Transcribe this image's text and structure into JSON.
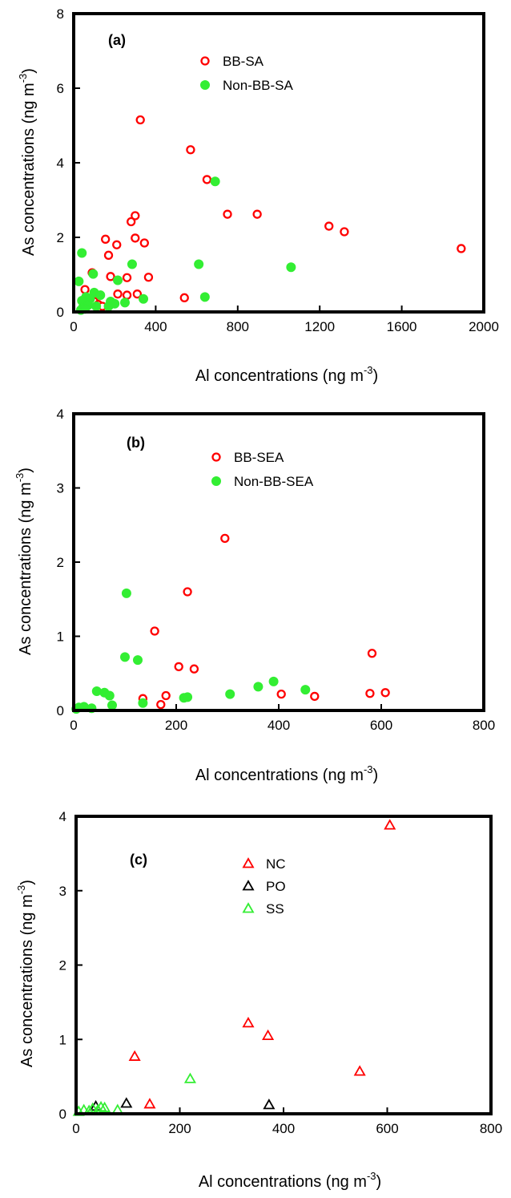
{
  "figure": {
    "panels": [
      {
        "label": "(a)",
        "xlabel": "Al concentrations (ng m",
        "xlabel_sup": "-3",
        "xlabel_end": ")",
        "ylabel": "As concentrations (ng m",
        "ylabel_sup": "-3",
        "ylabel_end": ")"
      },
      {
        "label": "(b)",
        "xlabel": "Al concentrations (ng m",
        "xlabel_sup": "-3",
        "xlabel_end": ")",
        "ylabel": "As concentrations (ng m",
        "ylabel_sup": "-3",
        "ylabel_end": ")"
      },
      {
        "label": "(c)",
        "xlabel": "Al concentrations (ng m",
        "xlabel_sup": "-3",
        "xlabel_end": ")",
        "ylabel": "As concentrations (ng m",
        "ylabel_sup": "-3",
        "ylabel_end": ")"
      }
    ]
  },
  "chart_data": [
    {
      "type": "scatter",
      "panel_label": "(a)",
      "xlabel": "Al concentrations (ng m-3)",
      "ylabel": "As concentrations (ng m-3)",
      "xlim": [
        0,
        2000
      ],
      "ylim": [
        0,
        8
      ],
      "xticks": [
        "0",
        "400",
        "800",
        "1200",
        "1600",
        "2000"
      ],
      "xtick_values": [
        0,
        400,
        800,
        1200,
        1600,
        2000
      ],
      "yticks": [
        "0",
        "2",
        "4",
        "6",
        "8"
      ],
      "ytick_values": [
        0,
        2,
        4,
        6,
        8
      ],
      "grid": false,
      "legend_position": "top-center",
      "series": [
        {
          "name": "BB-SA",
          "marker": "open-circle",
          "color": "#ff0000",
          "points": [
            [
              325,
              5.15
            ],
            [
              570,
              4.35
            ],
            [
              650,
              3.55
            ],
            [
              750,
              2.62
            ],
            [
              895,
              2.62
            ],
            [
              1245,
              2.3
            ],
            [
              1320,
              2.15
            ],
            [
              1890,
              1.7
            ],
            [
              300,
              2.58
            ],
            [
              280,
              2.42
            ],
            [
              300,
              1.98
            ],
            [
              345,
              1.85
            ],
            [
              155,
              1.95
            ],
            [
              210,
              1.8
            ],
            [
              170,
              1.52
            ],
            [
              180,
              0.95
            ],
            [
              260,
              0.92
            ],
            [
              365,
              0.93
            ],
            [
              90,
              1.05
            ],
            [
              130,
              0.45
            ],
            [
              215,
              0.48
            ],
            [
              260,
              0.45
            ],
            [
              310,
              0.48
            ],
            [
              540,
              0.38
            ],
            [
              55,
              0.6
            ],
            [
              75,
              0.35
            ],
            [
              100,
              0.28
            ],
            [
              120,
              0.2
            ],
            [
              140,
              0.15
            ],
            [
              60,
              0.25
            ]
          ]
        },
        {
          "name": "Non-BB-SA",
          "marker": "filled-circle",
          "color": "#33ee33",
          "points": [
            [
              690,
              3.5
            ],
            [
              40,
              1.58
            ],
            [
              610,
              1.28
            ],
            [
              1060,
              1.2
            ],
            [
              285,
              1.28
            ],
            [
              95,
              1.02
            ],
            [
              215,
              0.85
            ],
            [
              25,
              0.82
            ],
            [
              640,
              0.4
            ],
            [
              340,
              0.35
            ],
            [
              100,
              0.52
            ],
            [
              130,
              0.45
            ],
            [
              80,
              0.35
            ],
            [
              60,
              0.4
            ],
            [
              40,
              0.3
            ],
            [
              45,
              0.12
            ],
            [
              70,
              0.18
            ],
            [
              180,
              0.28
            ],
            [
              200,
              0.22
            ],
            [
              250,
              0.25
            ],
            [
              170,
              0.15
            ],
            [
              35,
              0.05
            ],
            [
              55,
              0.08
            ],
            [
              110,
              0.15
            ]
          ]
        }
      ]
    },
    {
      "type": "scatter",
      "panel_label": "(b)",
      "xlabel": "Al concentrations (ng m-3)",
      "ylabel": "As concentrations (ng m-3)",
      "xlim": [
        0,
        800
      ],
      "ylim": [
        0,
        4
      ],
      "xticks": [
        "0",
        "200",
        "400",
        "600",
        "800"
      ],
      "xtick_values": [
        0,
        200,
        400,
        600,
        800
      ],
      "yticks": [
        "0",
        "1",
        "2",
        "3",
        "4"
      ],
      "ytick_values": [
        0,
        1,
        2,
        3,
        4
      ],
      "grid": false,
      "legend_position": "top-center",
      "series": [
        {
          "name": "BB-SEA",
          "marker": "open-circle",
          "color": "#ff0000",
          "points": [
            [
              295,
              2.32
            ],
            [
              222,
              1.6
            ],
            [
              158,
              1.07
            ],
            [
              582,
              0.77
            ],
            [
              205,
              0.59
            ],
            [
              235,
              0.56
            ],
            [
              405,
              0.22
            ],
            [
              470,
              0.19
            ],
            [
              578,
              0.23
            ],
            [
              608,
              0.24
            ],
            [
              180,
              0.2
            ],
            [
              135,
              0.16
            ],
            [
              170,
              0.08
            ]
          ]
        },
        {
          "name": "Non-BB-SEA",
          "marker": "filled-circle",
          "color": "#33ee33",
          "points": [
            [
              103,
              1.58
            ],
            [
              100,
              0.72
            ],
            [
              125,
              0.68
            ],
            [
              390,
              0.39
            ],
            [
              360,
              0.32
            ],
            [
              452,
              0.28
            ],
            [
              305,
              0.22
            ],
            [
              45,
              0.26
            ],
            [
              60,
              0.24
            ],
            [
              70,
              0.2
            ],
            [
              215,
              0.17
            ],
            [
              222,
              0.18
            ],
            [
              135,
              0.1
            ],
            [
              75,
              0.07
            ],
            [
              10,
              0.04
            ],
            [
              20,
              0.05
            ],
            [
              35,
              0.03
            ],
            [
              5,
              0.02
            ]
          ]
        }
      ]
    },
    {
      "type": "scatter",
      "panel_label": "(c)",
      "xlabel": "Al concentrations (ng m-3)",
      "ylabel": "As concentrations (ng m-3)",
      "xlim": [
        0,
        800
      ],
      "ylim": [
        0,
        4
      ],
      "xticks": [
        "0",
        "200",
        "400",
        "600",
        "800"
      ],
      "xtick_values": [
        0,
        200,
        400,
        600,
        800
      ],
      "yticks": [
        "0",
        "1",
        "2",
        "3",
        "4"
      ],
      "ytick_values": [
        0,
        1,
        2,
        3,
        4
      ],
      "grid": false,
      "legend_position": "top-center",
      "series": [
        {
          "name": "NC",
          "marker": "open-triangle",
          "color": "#ff0000",
          "points": [
            [
              605,
              3.88
            ],
            [
              332,
              1.22
            ],
            [
              370,
              1.05
            ],
            [
              113,
              0.77
            ],
            [
              547,
              0.57
            ],
            [
              142,
              0.13
            ]
          ]
        },
        {
          "name": "PO",
          "marker": "open-triangle",
          "color": "#000000",
          "points": [
            [
              97,
              0.14
            ],
            [
              372,
              0.12
            ],
            [
              38,
              0.1
            ]
          ]
        },
        {
          "name": "SS",
          "marker": "open-triangle",
          "color": "#33ee33",
          "points": [
            [
              220,
              0.47
            ],
            [
              5,
              0.03
            ],
            [
              15,
              0.05
            ],
            [
              25,
              0.04
            ],
            [
              32,
              0.07
            ],
            [
              42,
              0.05
            ],
            [
              48,
              0.09
            ],
            [
              55,
              0.08
            ],
            [
              80,
              0.05
            ]
          ]
        }
      ]
    }
  ]
}
